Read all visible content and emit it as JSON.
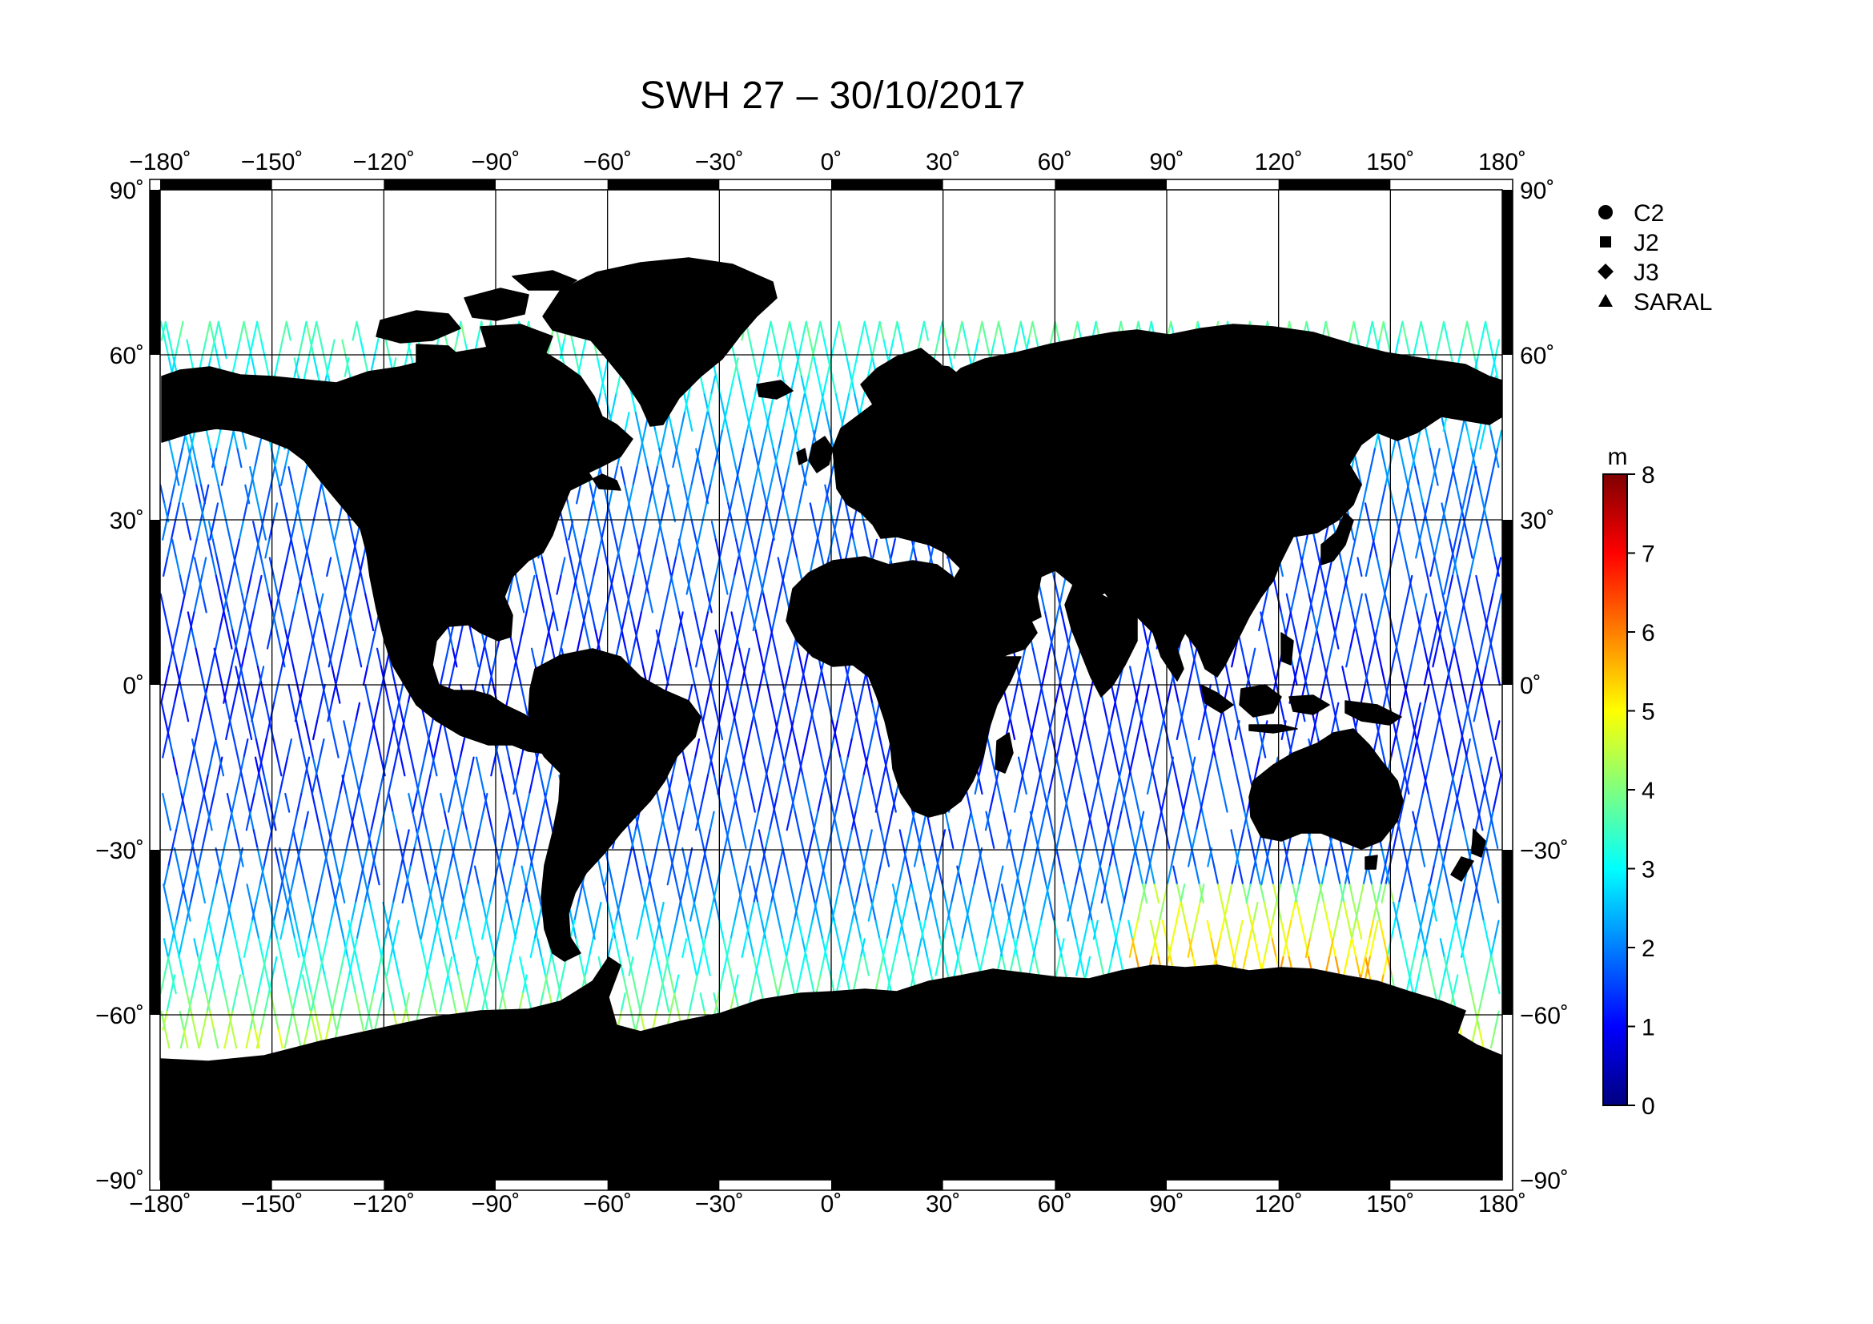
{
  "title": "SWH 27 – 30/10/2017",
  "map": {
    "projection": "equirectangular",
    "lon_range": [
      -180,
      180
    ],
    "lat_range": [
      -90,
      90
    ],
    "gridline_interval_deg": 30,
    "frame_style": "alternating black/white bands",
    "land_color": "#bebebe",
    "coastline_color": "#000000",
    "ocean_color": "#ffffff",
    "lon_tick_labels": [
      "−180˚",
      "−150˚",
      "−120˚",
      "−90˚",
      "−60˚",
      "−30˚",
      "0˚",
      "30˚",
      "60˚",
      "90˚",
      "120˚",
      "150˚",
      "180˚"
    ],
    "lat_tick_labels": [
      "90˚",
      "60˚",
      "30˚",
      "0˚",
      "−30˚",
      "−60˚",
      "−90˚"
    ]
  },
  "legend": {
    "placement": "right",
    "items": [
      {
        "symbol": "circle",
        "label": "C2"
      },
      {
        "symbol": "square",
        "label": "J2"
      },
      {
        "symbol": "diamond",
        "label": "J3"
      },
      {
        "symbol": "triangle",
        "label": "SARAL"
      }
    ]
  },
  "colorbar": {
    "unit": "m",
    "min": 0,
    "max": 8,
    "tick_labels": [
      "8",
      "7",
      "6",
      "5",
      "4",
      "3",
      "2",
      "1",
      "0"
    ],
    "colormap": "jet",
    "colors": [
      "#00007f",
      "#0000ff",
      "#007fff",
      "#00ffff",
      "#7fff7f",
      "#ffff00",
      "#ff7f00",
      "#ff0000",
      "#7f0000"
    ]
  }
}
